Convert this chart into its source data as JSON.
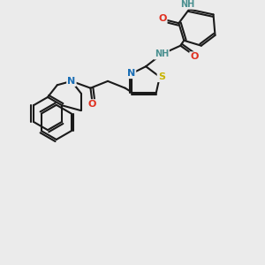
{
  "bg_color": "#ebebeb",
  "bond_color": "#1a1a1a",
  "bond_width": 1.5,
  "atom_colors": {
    "N": "#1a6eb5",
    "NH": "#4a9090",
    "O": "#e03020",
    "S": "#c8b400",
    "C": "#1a1a1a"
  },
  "font_size": 7.5
}
